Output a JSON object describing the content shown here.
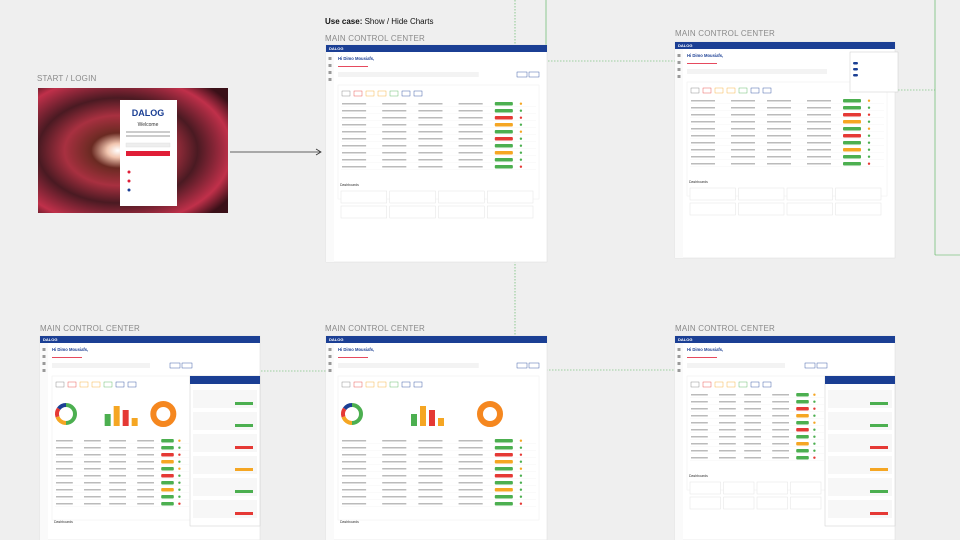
{
  "header": {
    "label": "Use case:",
    "title": "Show / Hide Charts"
  },
  "frames": [
    {
      "label": "START / LOGIN"
    },
    {
      "label": "MAIN CONTROL CENTER"
    },
    {
      "label": "MAIN CONTROL CENTER"
    },
    {
      "label": "MAIN CONTROL CENTER"
    },
    {
      "label": "MAIN CONTROL CENTER"
    },
    {
      "label": "MAIN CONTROL CENTER"
    }
  ],
  "login": {
    "logo": "DALOG",
    "heading": "Welcome"
  },
  "screen": {
    "logo": "DALOG",
    "greeting": "Hi Dimo Mousiafs,",
    "section": "Dashboards"
  }
}
